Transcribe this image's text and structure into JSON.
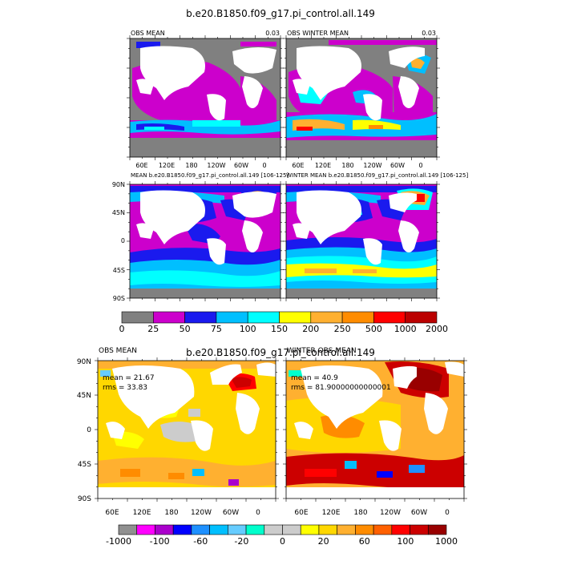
{
  "figure": {
    "title_top": "b.e20.B1850.f09_g17.pi_control.all.149",
    "title_bottom": "b.e20.B1850.f09_g17.pi_control.all.149"
  },
  "top_panels": [
    {
      "id": "obs-mean",
      "title": "OBS MEAN",
      "value": "0.03"
    },
    {
      "id": "obs-winter-mean",
      "title": "OBS WINTER MEAN",
      "value": "0.03"
    },
    {
      "id": "model-mean",
      "title": "MEAN b.e20.B1850.f09_g17.pi_control.all.149 [106-125]",
      "value": ""
    },
    {
      "id": "model-winter-mean",
      "title": "WINTER MEAN b.e20.B1850.f09_g17.pi_control.all.149 [106-125]",
      "value": ""
    }
  ],
  "bottom_panels": [
    {
      "id": "obs-mean-diff",
      "title": "OBS MEAN",
      "mean": "mean = 21.67",
      "rms": "rms = 33.83"
    },
    {
      "id": "winter-obs-mean-diff",
      "title": "WINTER OBS MEAN",
      "mean": "mean = 40.9",
      "rms": "rms = 81.90000000000001"
    }
  ],
  "axes": {
    "lon_ticks": [
      "60E",
      "120E",
      "180",
      "120W",
      "60W",
      "0"
    ],
    "lat_ticks": [
      "90N",
      "45N",
      "0",
      "45S",
      "90S"
    ]
  },
  "colorbar_top": {
    "labels": [
      "0",
      "25",
      "50",
      "75",
      "100",
      "150",
      "200",
      "250",
      "500",
      "1000",
      "2000"
    ],
    "colors": [
      "#808080",
      "#cc00cc",
      "#1a1aee",
      "#00bfff",
      "#00ffff",
      "#ffff00",
      "#ffb030",
      "#ff8c00",
      "#ff0000",
      "#bb0000"
    ]
  },
  "colorbar_bottom": {
    "labels": [
      "-1000",
      "-100",
      "-60",
      "-20",
      "0",
      "20",
      "60",
      "100",
      "1000"
    ],
    "colors": [
      "#909090",
      "#ff00ff",
      "#aa00cc",
      "#0000ff",
      "#1e90ff",
      "#00bfff",
      "#66ccff",
      "#00ffcc",
      "#cccccc",
      "#cccccc",
      "#ffff00",
      "#ffd700",
      "#ffb030",
      "#ff8c00",
      "#ff6000",
      "#ff0000",
      "#cc0000",
      "#990000"
    ]
  },
  "chart_data": {
    "type": "heatmap",
    "title": "b.e20.B1850.f09_g17.pi_control.all.149",
    "x": {
      "ticks": [
        "60E",
        "120E",
        "180",
        "120W",
        "60W",
        "0"
      ]
    },
    "y": {
      "ticks": [
        "90N",
        "45N",
        "0",
        "45S",
        "90S"
      ]
    },
    "panels": [
      {
        "title": "OBS MEAN",
        "value": "0.03"
      },
      {
        "title": "OBS WINTER MEAN",
        "value": "0.03"
      },
      {
        "title": "MEAN b.e20.B1850.f09_g17.pi_control.all.149 [106-125]"
      },
      {
        "title": "WINTER MEAN b.e20.B1850.f09_g17.pi_control.all.149 [106-125]"
      },
      {
        "title": "OBS MEAN",
        "mean": 21.67,
        "rms": 33.83
      },
      {
        "title": "WINTER OBS MEAN",
        "mean": 40.9,
        "rms": 81.9
      }
    ],
    "colorbar_levels_top": [
      0,
      25,
      50,
      75,
      100,
      150,
      200,
      250,
      500,
      1000,
      2000
    ],
    "colorbar_levels_bottom": [
      -1000,
      -100,
      -60,
      -20,
      0,
      20,
      60,
      100,
      1000
    ]
  }
}
